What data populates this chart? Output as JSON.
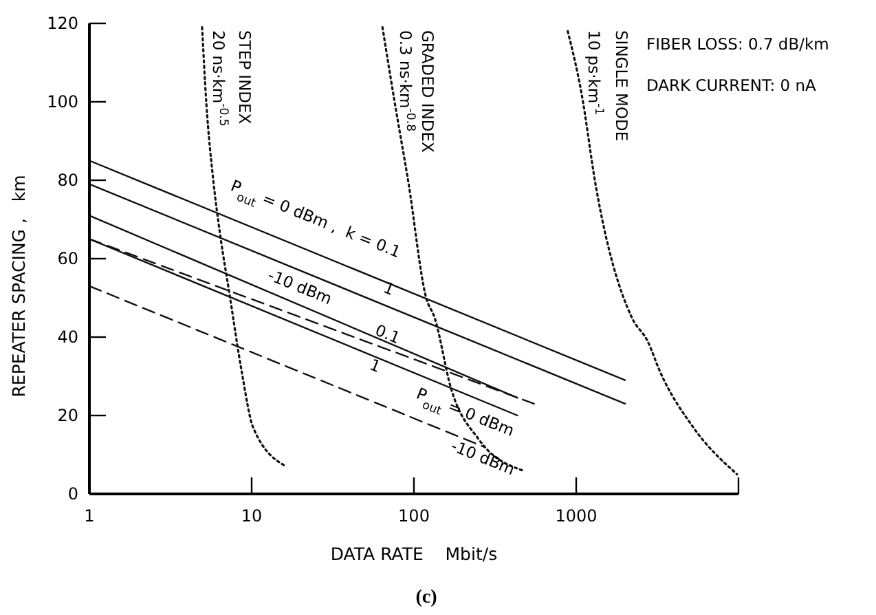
{
  "chart_data": {
    "type": "line",
    "log": "x",
    "xlabel": "DATA RATE    Mbit/s",
    "ylabel": "REPEATER SPACING ,   km",
    "xlim": [
      1,
      10000
    ],
    "ylim": [
      0,
      120
    ],
    "xticks": [
      1,
      10,
      100,
      1000,
      {
        "value": 10000,
        "label": null
      }
    ],
    "yticks": [
      0,
      20,
      40,
      60,
      80,
      100,
      120
    ],
    "grid": false,
    "series": [
      {
        "color": "#111111",
        "line_style": "solid",
        "x": [
          1,
          2000
        ],
        "values": [
          85,
          29
        ]
      },
      {
        "color": "#111111",
        "line_style": "solid",
        "x": [
          1,
          2000
        ],
        "values": [
          79,
          23
        ]
      },
      {
        "color": "#111111",
        "line_style": "solid",
        "x": [
          1,
          435
        ],
        "values": [
          71,
          24.5
        ]
      },
      {
        "color": "#111111",
        "line_style": "solid",
        "x": [
          1,
          435
        ],
        "values": [
          65,
          20
        ]
      },
      {
        "color": "#111111",
        "line_style": "dashed",
        "x": [
          1,
          550
        ],
        "values": [
          65,
          23
        ]
      },
      {
        "color": "#111111",
        "line_style": "dashed",
        "x": [
          1,
          270
        ],
        "values": [
          53,
          12
        ]
      },
      {
        "color": "#111111",
        "line_style": "dotted",
        "x": [
          4.95,
          5.25,
          5.8,
          6.4,
          7.3,
          8.7,
          10.2,
          16.3
        ],
        "values": [
          119,
          100,
          80,
          66,
          51,
          31,
          17,
          7
        ]
      },
      {
        "color": "#111111",
        "line_style": "dotted",
        "x": [
          64,
          76,
          92,
          119,
          134,
          169,
          250,
          466
        ],
        "values": [
          119,
          100,
          80,
          50,
          45,
          27,
          14,
          6
        ]
      },
      {
        "color": "#111111",
        "line_style": "dotted",
        "x": [
          887,
          1080,
          1315,
          2200,
          2750,
          3300,
          5260,
          9800
        ],
        "values": [
          118,
          102,
          79,
          45,
          39,
          31,
          17,
          5
        ]
      }
    ],
    "annotations": [
      "P$_{out}$ = 0 dBm ,  k = 0.1",
      "1",
      "-10 dBm",
      "0.1",
      "1",
      "P$_{out}$ = 0 dBm",
      "-10 dBm",
      "STEP INDEX",
      "20 ns·km$^{-0.5}$",
      "GRADED INDEX",
      "0.3 ns·km$^{-0.8}$",
      "SINGLE MODE",
      "10 ps·km$^{-1}$",
      "FIBER LOSS: 0.7 dB/km",
      "DARK CURRENT: 0 nA",
      "(c)"
    ]
  }
}
